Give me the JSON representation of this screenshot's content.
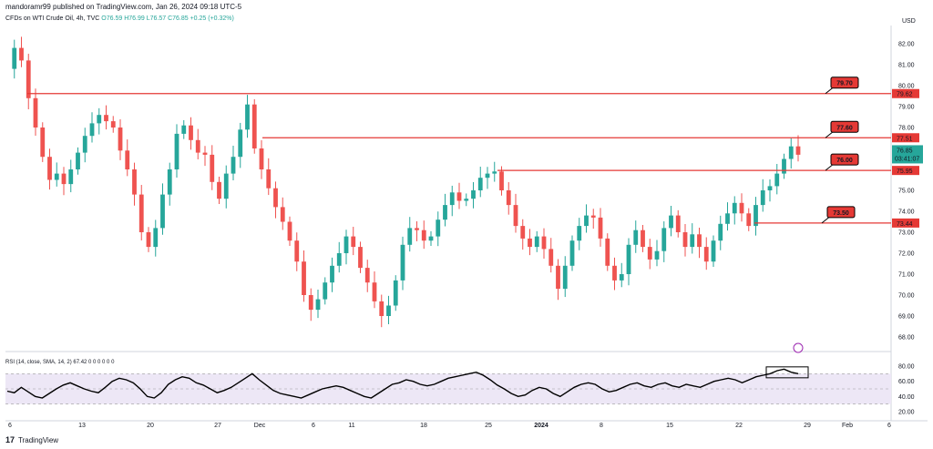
{
  "header": {
    "publisher": "mandoramr99 published on TradingView.com, Jan 26, 2024 09:18 UTC-5",
    "symbol": "CFDs on WTI Crude Oil, 4h, TVC",
    "ohlc": "O76.59 H76.99 L76.57 C76.85 +0.25 (+0.32%)"
  },
  "currency": "USD",
  "rsi_label": "RSI (14, close, SMA, 14, 2)  67.42  0  0  0  0  0       0",
  "footer_logo": "TradingView",
  "colors": {
    "up": "#26a69a",
    "down": "#ef5350",
    "level_line": "#e53935",
    "rsi_line": "#000000",
    "rsi_band": "#ede7f6"
  },
  "chart_data": [
    {
      "type": "candlestick",
      "title": "CFDs on WTI Crude Oil, 4h, TVC",
      "ylabel": "USD",
      "ylim": [
        67.5,
        82.5
      ],
      "yticks": [
        "82.00",
        "81.00",
        "80.00",
        "79.00",
        "78.00",
        "77.00",
        "76.00",
        "75.00",
        "74.00",
        "73.00",
        "72.00",
        "71.00",
        "70.00",
        "69.00",
        "68.00"
      ],
      "xticks": [
        "6",
        "13",
        "20",
        "27",
        "Dec",
        "6",
        "11",
        "18",
        "25",
        "2024",
        "8",
        "15",
        "22",
        "29",
        "Feb",
        "6"
      ],
      "close_path": [
        80.8,
        81.8,
        81.2,
        79.4,
        78.0,
        76.6,
        75.5,
        75.8,
        75.3,
        76.0,
        76.8,
        77.6,
        78.2,
        78.6,
        78.3,
        78.0,
        76.9,
        76.0,
        74.8,
        73.0,
        72.3,
        73.2,
        74.8,
        76.0,
        77.7,
        78.1,
        77.4,
        76.8,
        76.7,
        75.4,
        74.6,
        75.8,
        76.6,
        77.9,
        79.1,
        77.0,
        76.0,
        75.1,
        74.2,
        73.5,
        72.6,
        71.6,
        70.0,
        69.3,
        69.8,
        70.6,
        71.4,
        72.0,
        72.8,
        72.3,
        71.3,
        70.6,
        69.7,
        69.0,
        69.5,
        70.7,
        72.4,
        73.2,
        73.1,
        72.6,
        72.8,
        73.6,
        74.3,
        74.9,
        74.5,
        74.6,
        75.0,
        75.6,
        75.8,
        75.9,
        75.0,
        74.3,
        73.3,
        72.7,
        72.3,
        72.8,
        72.2,
        71.4,
        70.3,
        71.4,
        72.6,
        73.3,
        73.8,
        73.7,
        72.7,
        71.4,
        70.7,
        71.0,
        72.4,
        73.1,
        72.3,
        71.7,
        72.1,
        73.2,
        73.8,
        73.0,
        72.3,
        72.9,
        72.3,
        71.6,
        72.6,
        73.4,
        73.9,
        74.4,
        73.9,
        73.3,
        74.3,
        75.0,
        75.2,
        75.8,
        76.5,
        77.1,
        76.7
      ],
      "price_levels": [
        {
          "label": "79.70",
          "axis_tag": "79.62",
          "value": 79.62
        },
        {
          "label": "77.60",
          "axis_tag": "77.51",
          "value": 77.51
        },
        {
          "label": "76.00",
          "axis_tag": "75.95",
          "value": 75.95
        },
        {
          "label": "73.50",
          "axis_tag": "73.44",
          "value": 73.44
        }
      ],
      "last_price": {
        "value": 76.85,
        "label": "76.85",
        "countdown": "03:41:07"
      }
    },
    {
      "type": "line",
      "title": "RSI (14, close, SMA, 14, 2)",
      "ylim": [
        15,
        82
      ],
      "yticks": [
        "80.00",
        "60.00",
        "40.00",
        "20.00"
      ],
      "bands": [
        70,
        30
      ],
      "middle": 50,
      "series": [
        {
          "values": [
            47,
            45,
            52,
            46,
            40,
            38,
            44,
            50,
            55,
            58,
            54,
            50,
            47,
            45,
            52,
            60,
            64,
            62,
            58,
            50,
            40,
            38,
            45,
            56,
            62,
            66,
            64,
            58,
            55,
            50,
            45,
            48,
            52,
            58,
            64,
            70,
            62,
            55,
            48,
            44,
            42,
            40,
            38,
            42,
            46,
            50,
            52,
            54,
            52,
            48,
            44,
            40,
            38,
            44,
            50,
            56,
            58,
            62,
            60,
            56,
            54,
            56,
            60,
            64,
            66,
            68,
            70,
            72,
            68,
            62,
            55,
            50,
            44,
            40,
            42,
            48,
            52,
            50,
            44,
            40,
            46,
            52,
            56,
            58,
            56,
            50,
            46,
            48,
            52,
            56,
            58,
            54,
            52,
            56,
            58,
            54,
            52,
            56,
            54,
            52,
            56,
            60,
            62,
            64,
            62,
            58,
            62,
            66,
            68,
            70,
            74,
            76,
            72,
            70
          ]
        }
      ]
    }
  ]
}
